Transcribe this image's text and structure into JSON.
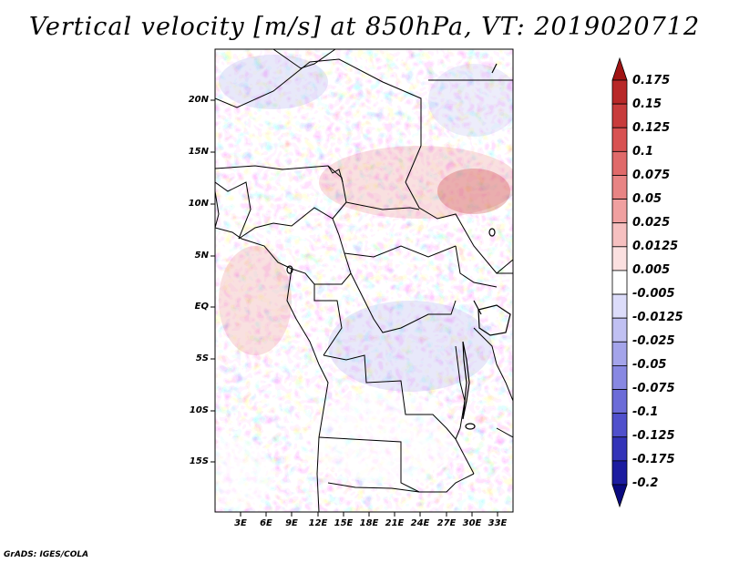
{
  "title": "Vertical velocity [m/s] at 850hPa, VT: 2019020712",
  "map": {
    "lat_labels": [
      "20N",
      "15N",
      "10N",
      "5N",
      "EQ",
      "5S",
      "10S",
      "15S"
    ],
    "lon_labels": [
      "3E",
      "6E",
      "9E",
      "12E",
      "15E",
      "18E",
      "21E",
      "24E",
      "27E",
      "30E",
      "33E"
    ]
  },
  "colorbar": {
    "levels": [
      "0.175",
      "0.15",
      "0.125",
      "0.1",
      "0.075",
      "0.05",
      "0.025",
      "0.0125",
      "0.005",
      "-0.005",
      "-0.0125",
      "-0.025",
      "-0.05",
      "-0.075",
      "-0.1",
      "-0.125",
      "-0.175",
      "-0.2"
    ],
    "colors": [
      "#a01414",
      "#b82828",
      "#c83c3c",
      "#d85252",
      "#e06a6a",
      "#e88484",
      "#f0a0a0",
      "#f6c0c0",
      "#fbe0e0",
      "#ffffff",
      "#dcdcfa",
      "#c0c0f2",
      "#a4a4ea",
      "#8888e2",
      "#6c6cd8",
      "#5050cc",
      "#3434b8",
      "#1c1ca0",
      "#0a0a80"
    ]
  },
  "credit": "GrADS: IGES/COLA"
}
